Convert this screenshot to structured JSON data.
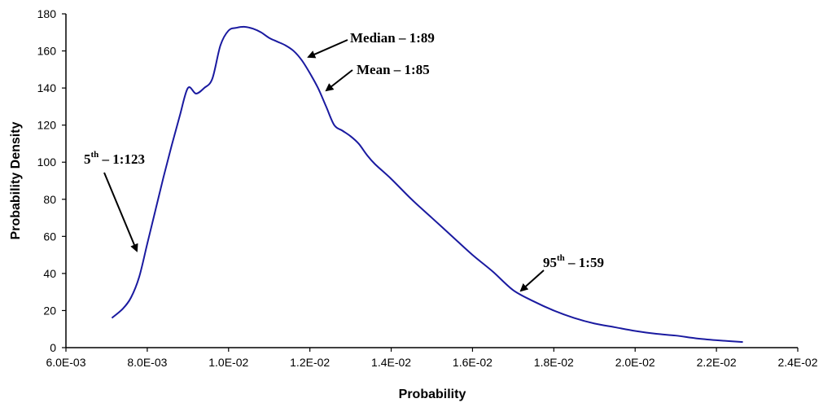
{
  "chart_data": {
    "type": "line",
    "title": "",
    "xlabel": "Probability",
    "ylabel": "Probability Density",
    "xlim": [
      0.006,
      0.024
    ],
    "ylim": [
      0,
      180
    ],
    "x_ticks": [
      0.006,
      0.008,
      0.01,
      0.012,
      0.014,
      0.016,
      0.018,
      0.02,
      0.022,
      0.024
    ],
    "x_tick_labels": [
      "6.0E-03",
      "8.0E-03",
      "1.0E-02",
      "1.2E-02",
      "1.4E-02",
      "1.6E-02",
      "1.8E-02",
      "2.0E-02",
      "2.2E-02",
      "2.4E-02"
    ],
    "y_ticks": [
      0,
      20,
      40,
      60,
      80,
      100,
      120,
      140,
      160,
      180
    ],
    "y_tick_labels": [
      "0",
      "20",
      "40",
      "60",
      "80",
      "100",
      "120",
      "140",
      "160",
      "180"
    ],
    "grid": false,
    "line_color": "#1a1aa0",
    "series": [
      {
        "x": [
          0.00713,
          0.0074,
          0.0076,
          0.0078,
          0.008,
          0.0082,
          0.0084,
          0.0086,
          0.0088,
          0.009,
          0.0092,
          0.0094,
          0.0096,
          0.0098,
          0.01,
          0.0102,
          0.0104,
          0.0106,
          0.0108,
          0.011,
          0.0112,
          0.0114,
          0.0116,
          0.0118,
          0.012,
          0.0122,
          0.0124,
          0.0126,
          0.0128,
          0.013,
          0.0132,
          0.0134,
          0.0136,
          0.014,
          0.0145,
          0.015,
          0.0155,
          0.016,
          0.0165,
          0.017,
          0.0175,
          0.018,
          0.0185,
          0.019,
          0.0195,
          0.02,
          0.0205,
          0.021,
          0.0215,
          0.022,
          0.02265
        ],
        "y": [
          16,
          21,
          27,
          38,
          56,
          74,
          92,
          109,
          125,
          140,
          137,
          140,
          145,
          163,
          171,
          172.5,
          173,
          172,
          170,
          167,
          165,
          163,
          160,
          155,
          148,
          140,
          130,
          120,
          117,
          114,
          110,
          104,
          99,
          91,
          80,
          70,
          60,
          50,
          41,
          31,
          25,
          20,
          16,
          13,
          11,
          9,
          7.5,
          6.5,
          5,
          4,
          3
        ]
      }
    ],
    "annotations": [
      {
        "label": "Median – 1:89",
        "x": 0.01185,
        "y": 156
      },
      {
        "label": "Mean – 1:85",
        "x": 0.01235,
        "y": 138
      },
      {
        "label": "5th – 1:123",
        "sup": "th",
        "x": 0.00792,
        "y": 52
      },
      {
        "label": "95th – 1:59",
        "sup": "th",
        "x": 0.01718,
        "y": 29
      }
    ]
  },
  "annotations_text": {
    "median": "Median – 1:89",
    "mean": "Mean – 1:85",
    "p5_base": "5",
    "p5_sup": "th",
    "p5_rest": " – 1:123",
    "p95_base": "95",
    "p95_sup": "th",
    "p95_rest": " – 1:59"
  }
}
